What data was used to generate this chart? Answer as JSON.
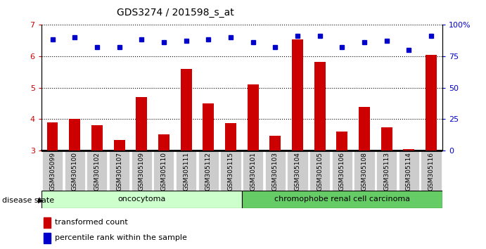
{
  "title": "GDS3274 / 201598_s_at",
  "categories": [
    "GSM305099",
    "GSM305100",
    "GSM305102",
    "GSM305107",
    "GSM305109",
    "GSM305110",
    "GSM305111",
    "GSM305112",
    "GSM305115",
    "GSM305101",
    "GSM305103",
    "GSM305104",
    "GSM305105",
    "GSM305106",
    "GSM305108",
    "GSM305113",
    "GSM305114",
    "GSM305116"
  ],
  "bar_values": [
    3.9,
    4.0,
    3.8,
    3.35,
    4.7,
    3.52,
    5.6,
    4.5,
    3.88,
    5.1,
    3.48,
    6.55,
    5.82,
    3.6,
    4.38,
    3.75,
    3.05,
    6.05
  ],
  "dot_values": [
    6.55,
    6.6,
    6.3,
    6.3,
    6.55,
    6.45,
    6.5,
    6.55,
    6.6,
    6.45,
    6.3,
    6.65,
    6.65,
    6.3,
    6.45,
    6.5,
    6.2,
    6.65
  ],
  "bar_color": "#cc0000",
  "dot_color": "#0000cc",
  "ylim_left": [
    3,
    7
  ],
  "ylim_right": [
    0,
    100
  ],
  "yticks_left": [
    3,
    4,
    5,
    6,
    7
  ],
  "yticks_right": [
    0,
    25,
    50,
    75,
    100
  ],
  "ytick_labels_right": [
    "0",
    "25",
    "50",
    "75",
    "100%"
  ],
  "group1_label": "oncocytoma",
  "group2_label": "chromophobe renal cell carcinoma",
  "group1_count": 9,
  "group2_count": 9,
  "disease_state_label": "disease state",
  "legend_bar_label": "transformed count",
  "legend_dot_label": "percentile rank within the sample",
  "group1_color": "#ccffcc",
  "group2_color": "#66cc66",
  "tick_label_bg": "#cccccc",
  "group_border_color": "#000000"
}
